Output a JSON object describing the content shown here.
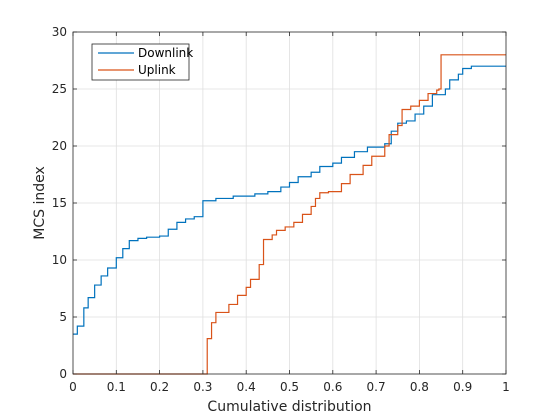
{
  "chart_data": {
    "type": "line",
    "line_style": "step",
    "title": "",
    "xlabel": "Cumulative distribution",
    "ylabel": "MCS index",
    "xlim": [
      0,
      1
    ],
    "ylim": [
      0,
      30
    ],
    "xticks": [
      0,
      0.1,
      0.2,
      0.3,
      0.4,
      0.5,
      0.6,
      0.7,
      0.8,
      0.9,
      1
    ],
    "xtick_labels": [
      "0",
      "0.1",
      "0.2",
      "0.3",
      "0.4",
      "0.5",
      "0.6",
      "0.7",
      "0.8",
      "0.9",
      "1"
    ],
    "yticks": [
      0,
      5,
      10,
      15,
      20,
      25,
      30
    ],
    "ytick_labels": [
      "0",
      "5",
      "10",
      "15",
      "20",
      "25",
      "30"
    ],
    "grid": true,
    "legend_position": "top-left",
    "series": [
      {
        "name": "Downlink",
        "color": "#0072BD",
        "points": [
          [
            0.0,
            3.5
          ],
          [
            0.01,
            4.2
          ],
          [
            0.025,
            5.8
          ],
          [
            0.035,
            6.7
          ],
          [
            0.05,
            7.8
          ],
          [
            0.065,
            8.6
          ],
          [
            0.08,
            9.3
          ],
          [
            0.1,
            10.2
          ],
          [
            0.115,
            11.0
          ],
          [
            0.13,
            11.7
          ],
          [
            0.15,
            11.9
          ],
          [
            0.17,
            12.0
          ],
          [
            0.2,
            12.1
          ],
          [
            0.22,
            12.7
          ],
          [
            0.24,
            13.3
          ],
          [
            0.26,
            13.6
          ],
          [
            0.28,
            13.8
          ],
          [
            0.3,
            15.2
          ],
          [
            0.33,
            15.4
          ],
          [
            0.37,
            15.6
          ],
          [
            0.42,
            15.8
          ],
          [
            0.45,
            16.0
          ],
          [
            0.48,
            16.4
          ],
          [
            0.5,
            16.8
          ],
          [
            0.52,
            17.3
          ],
          [
            0.55,
            17.7
          ],
          [
            0.57,
            18.2
          ],
          [
            0.6,
            18.5
          ],
          [
            0.62,
            19.0
          ],
          [
            0.65,
            19.5
          ],
          [
            0.68,
            19.9
          ],
          [
            0.72,
            20.2
          ],
          [
            0.735,
            21.3
          ],
          [
            0.75,
            22.0
          ],
          [
            0.77,
            22.2
          ],
          [
            0.79,
            22.8
          ],
          [
            0.81,
            23.5
          ],
          [
            0.83,
            24.5
          ],
          [
            0.86,
            25.0
          ],
          [
            0.87,
            25.8
          ],
          [
            0.89,
            26.3
          ],
          [
            0.9,
            26.8
          ],
          [
            0.92,
            27.0
          ],
          [
            1.0,
            27.0
          ]
        ]
      },
      {
        "name": "Uplink",
        "color": "#D95319",
        "points": [
          [
            0.0,
            0.0
          ],
          [
            0.305,
            0.0
          ],
          [
            0.31,
            3.1
          ],
          [
            0.32,
            4.5
          ],
          [
            0.33,
            5.4
          ],
          [
            0.36,
            6.1
          ],
          [
            0.38,
            6.9
          ],
          [
            0.4,
            7.6
          ],
          [
            0.41,
            8.3
          ],
          [
            0.43,
            9.6
          ],
          [
            0.44,
            11.8
          ],
          [
            0.46,
            12.2
          ],
          [
            0.47,
            12.6
          ],
          [
            0.49,
            12.9
          ],
          [
            0.51,
            13.3
          ],
          [
            0.53,
            14.0
          ],
          [
            0.55,
            14.7
          ],
          [
            0.56,
            15.4
          ],
          [
            0.57,
            15.9
          ],
          [
            0.59,
            16.0
          ],
          [
            0.62,
            16.7
          ],
          [
            0.64,
            17.5
          ],
          [
            0.67,
            18.3
          ],
          [
            0.69,
            19.1
          ],
          [
            0.72,
            20.0
          ],
          [
            0.73,
            21.0
          ],
          [
            0.75,
            21.8
          ],
          [
            0.76,
            23.2
          ],
          [
            0.78,
            23.5
          ],
          [
            0.8,
            24.0
          ],
          [
            0.82,
            24.6
          ],
          [
            0.84,
            24.9
          ],
          [
            0.845,
            25.0
          ],
          [
            0.85,
            28.0
          ],
          [
            1.0,
            28.0
          ]
        ]
      }
    ]
  }
}
